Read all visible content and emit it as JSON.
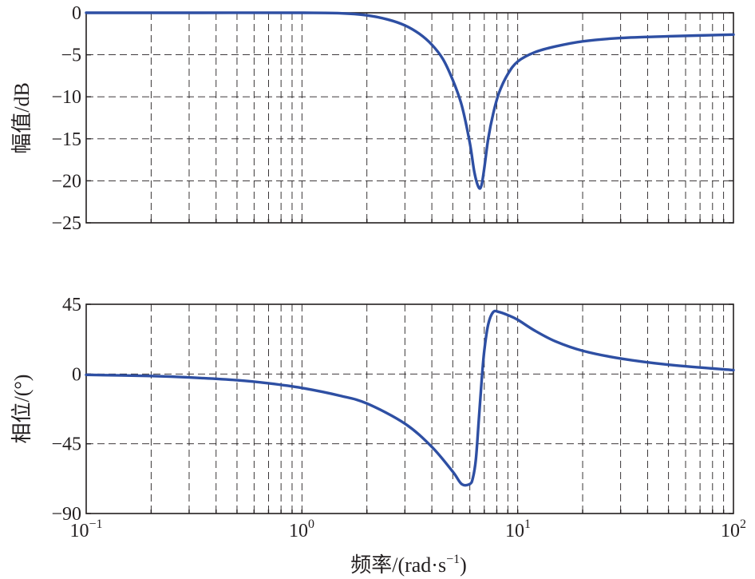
{
  "chart_data": [
    {
      "type": "line",
      "title": "",
      "xlabel": "频率/(rad·s⁻¹)",
      "ylabel": "幅值/dB",
      "xscale": "log",
      "xlim": [
        0.1,
        100
      ],
      "ylim": [
        -25,
        0
      ],
      "yticks": [
        0,
        -5,
        -10,
        -15,
        -20,
        -25
      ],
      "grid": true,
      "series": [
        {
          "color": "#2e4fa3",
          "x": [
            0.1,
            0.3,
            1,
            1.5,
            2,
            2.5,
            3,
            3.5,
            4,
            4.5,
            5,
            5.5,
            6,
            6.3,
            6.6,
            6.8,
            7,
            7.3,
            7.7,
            8.2,
            9,
            10,
            12,
            15,
            20,
            30,
            50,
            100
          ],
          "y": [
            0,
            0,
            0,
            -0.05,
            -0.3,
            -0.8,
            -1.5,
            -2.5,
            -3.8,
            -5.5,
            -8,
            -11,
            -15.5,
            -19,
            -20.8,
            -20.5,
            -18.5,
            -15,
            -12,
            -9.5,
            -7.3,
            -5.8,
            -4.7,
            -4,
            -3.4,
            -3,
            -2.8,
            -2.6
          ]
        }
      ]
    },
    {
      "type": "line",
      "title": "",
      "xlabel": "频率/(rad·s⁻¹)",
      "ylabel": "相位/(°)",
      "xscale": "log",
      "xlim": [
        0.1,
        100
      ],
      "ylim": [
        -90,
        45
      ],
      "yticks": [
        45,
        0,
        -45,
        -90
      ],
      "grid": true,
      "series": [
        {
          "color": "#2e4fa3",
          "x": [
            0.1,
            0.2,
            0.3,
            0.5,
            0.7,
            1,
            1.5,
            2,
            3,
            4,
            5,
            5.5,
            6,
            6.2,
            6.4,
            6.6,
            6.8,
            7,
            7.3,
            7.7,
            8.2,
            9,
            10,
            12,
            15,
            20,
            30,
            50,
            100
          ],
          "y": [
            -0.5,
            -1.3,
            -2.2,
            -4,
            -6,
            -9,
            -14,
            -19,
            -32,
            -47,
            -63,
            -71,
            -71,
            -67,
            -55,
            -30,
            -5,
            15,
            32,
            40,
            40,
            38,
            35,
            28,
            21,
            15,
            10,
            6,
            2.5
          ]
        }
      ]
    }
  ],
  "x_tick_labels": [
    {
      "base": "10",
      "exp": "−1"
    },
    {
      "base": "10",
      "exp": "0"
    },
    {
      "base": "10",
      "exp": "1"
    },
    {
      "base": "10",
      "exp": "2"
    }
  ],
  "labels": {
    "magnitude_ylabel": "幅值/dB",
    "phase_ylabel": "相位/(°)",
    "xlabel_main": "频率/(rad·s",
    "xlabel_exp": "−1",
    "xlabel_close": ")"
  }
}
